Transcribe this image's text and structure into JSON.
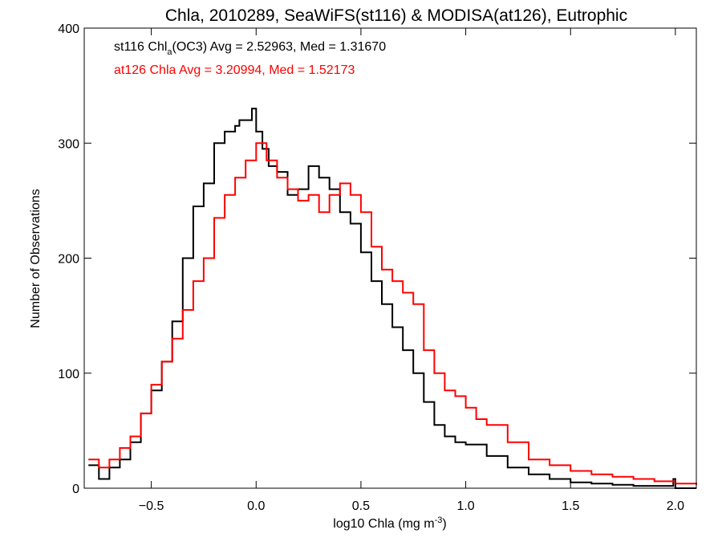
{
  "chart_data": {
    "type": "line",
    "title": "Chla, 2010289, SeaWiFS(st116) & MODISA(at126), Eutrophic",
    "xlabel": "log10 Chla (mg m",
    "xlabel_sup": "-3",
    "xlabel_end": ")",
    "ylabel": "Number of Observations",
    "xlim": [
      -0.82,
      2.1
    ],
    "ylim": [
      0,
      400
    ],
    "xticks": [
      -0.5,
      0.0,
      0.5,
      1.0,
      1.5,
      2.0
    ],
    "xtick_labels": [
      "−0.5",
      "0.0",
      "0.5",
      "1.0",
      "1.5",
      "2.0"
    ],
    "yticks": [
      0,
      100,
      200,
      300,
      400
    ],
    "ytick_labels": [
      "0",
      "100",
      "200",
      "300",
      "400"
    ],
    "grid": false,
    "annotations": {
      "st116": {
        "prefix": "st116 Chl",
        "sub": "a",
        "suffix": "(OC3) Avg = 2.52963, Med = 1.31670",
        "color": "#000000"
      },
      "at126": {
        "text": "at126 Chla Avg = 3.20994, Med = 1.52173",
        "color": "#ff0000"
      }
    },
    "series": [
      {
        "color": "#000000",
        "x": [
          -0.8,
          -0.75,
          -0.7,
          -0.65,
          -0.6,
          -0.55,
          -0.5,
          -0.45,
          -0.4,
          -0.35,
          -0.3,
          -0.25,
          -0.2,
          -0.15,
          -0.1,
          -0.08,
          -0.05,
          -0.02,
          0.0,
          0.03,
          0.06,
          0.1,
          0.15,
          0.2,
          0.25,
          0.3,
          0.35,
          0.4,
          0.45,
          0.5,
          0.55,
          0.6,
          0.65,
          0.7,
          0.75,
          0.8,
          0.85,
          0.9,
          0.95,
          1.0,
          1.1,
          1.2,
          1.3,
          1.4,
          1.5,
          1.6,
          1.7,
          1.8,
          1.9,
          1.95,
          1.99,
          2.0,
          2.1
        ],
        "y": [
          20,
          8,
          18,
          25,
          40,
          65,
          85,
          110,
          145,
          200,
          245,
          265,
          300,
          310,
          315,
          320,
          320,
          330,
          310,
          295,
          280,
          275,
          255,
          260,
          280,
          270,
          260,
          240,
          230,
          205,
          180,
          160,
          140,
          120,
          100,
          75,
          55,
          45,
          40,
          38,
          28,
          18,
          12,
          8,
          5,
          4,
          3,
          2,
          2,
          2,
          8,
          0,
          0
        ]
      },
      {
        "color": "#ff0000",
        "x": [
          -0.8,
          -0.75,
          -0.7,
          -0.65,
          -0.6,
          -0.55,
          -0.5,
          -0.45,
          -0.4,
          -0.35,
          -0.3,
          -0.25,
          -0.2,
          -0.15,
          -0.1,
          -0.05,
          0.0,
          0.05,
          0.1,
          0.15,
          0.2,
          0.25,
          0.3,
          0.35,
          0.4,
          0.45,
          0.5,
          0.55,
          0.6,
          0.65,
          0.7,
          0.75,
          0.8,
          0.85,
          0.9,
          0.95,
          1.0,
          1.05,
          1.1,
          1.2,
          1.3,
          1.4,
          1.5,
          1.6,
          1.7,
          1.8,
          1.9,
          2.0,
          2.1
        ],
        "y": [
          25,
          18,
          25,
          35,
          45,
          65,
          90,
          110,
          130,
          155,
          180,
          200,
          235,
          255,
          270,
          285,
          300,
          285,
          270,
          260,
          250,
          255,
          240,
          255,
          265,
          255,
          240,
          210,
          190,
          180,
          170,
          160,
          120,
          100,
          85,
          80,
          70,
          60,
          55,
          40,
          25,
          20,
          15,
          12,
          10,
          8,
          6,
          4,
          3
        ]
      }
    ]
  }
}
